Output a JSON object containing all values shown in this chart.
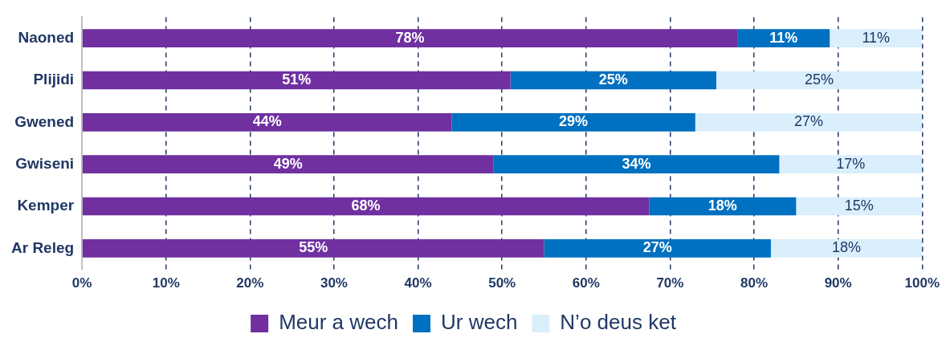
{
  "chart_data": {
    "type": "bar",
    "orientation": "horizontal",
    "stacked": true,
    "categories": [
      "Naoned",
      "Plijidi",
      "Gwened",
      "Gwiseni",
      "Kemper",
      "Ar Releg"
    ],
    "series": [
      {
        "name": "Meur a wech",
        "color": "#7030a0",
        "values": [
          78,
          51,
          44,
          49,
          67.5,
          55
        ],
        "value_labels": [
          "78%",
          "51%",
          "44%",
          "49%",
          "68%",
          "55%"
        ]
      },
      {
        "name": "Ur wech",
        "color": "#0070c0",
        "values": [
          11,
          24.5,
          29,
          34,
          17.5,
          27
        ],
        "value_labels": [
          "11%",
          "25%",
          "29%",
          "34%",
          "18%",
          "27%"
        ]
      },
      {
        "name": "N’o deus ket",
        "color": "#daeefc",
        "values": [
          11,
          24.5,
          27,
          17,
          15,
          18
        ],
        "value_labels": [
          "11%",
          "25%",
          "27%",
          "17%",
          "15%",
          "18%"
        ]
      }
    ],
    "xlim": [
      0,
      100
    ],
    "xticks": [
      {
        "value": 0,
        "label": "0%"
      },
      {
        "value": 10,
        "label": "10%"
      },
      {
        "value": 20,
        "label": "20%"
      },
      {
        "value": 30,
        "label": "30%"
      },
      {
        "value": 40,
        "label": "40%"
      },
      {
        "value": 50,
        "label": "50%"
      },
      {
        "value": 60,
        "label": "60%"
      },
      {
        "value": 70,
        "label": "70%"
      },
      {
        "value": 80,
        "label": "80%"
      },
      {
        "value": 90,
        "label": "90%"
      },
      {
        "value": 100,
        "label": "100%"
      }
    ],
    "grid": "x",
    "legend": "bottom"
  }
}
